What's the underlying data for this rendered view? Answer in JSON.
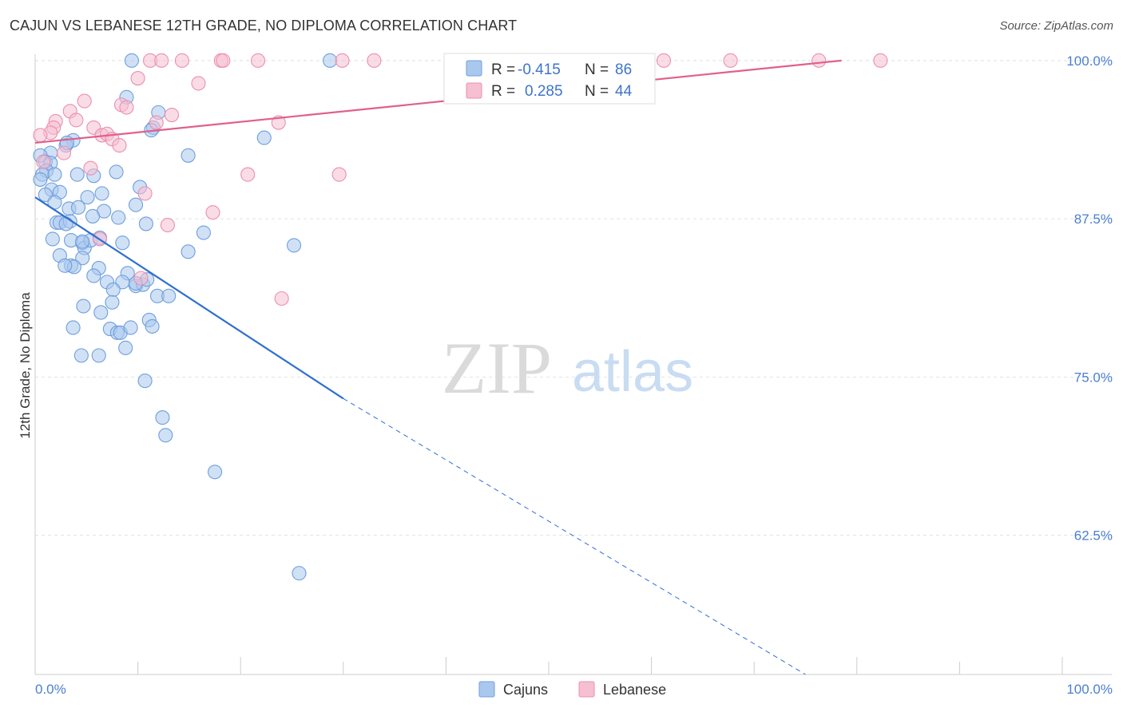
{
  "title": "CAJUN VS LEBANESE 12TH GRADE, NO DIPLOMA CORRELATION CHART",
  "source": "Source: ZipAtlas.com",
  "watermark": {
    "zip": "ZIP",
    "atlas": "atlas"
  },
  "colors": {
    "cajuns_fill": "#aac8ee",
    "cajuns_stroke": "#6f9fdc",
    "cajuns_line": "#2f6fcf",
    "lebanese_fill": "#f6bfd2",
    "lebanese_stroke": "#ea8fb0",
    "lebanese_line": "#e0608c",
    "tick_label": "#4a7fd0",
    "grid": "#e3e3e3"
  },
  "legend": {
    "rows": [
      {
        "r_label": "R =",
        "r_value": "-0.415",
        "n_label": "N =",
        "n_value": "86"
      },
      {
        "r_label": "R =",
        "r_value": "0.285",
        "n_label": "N =",
        "n_value": "44"
      }
    ]
  },
  "chart_data": {
    "type": "scatter",
    "title": "CAJUN VS LEBANESE 12TH GRADE, NO DIPLOMA CORRELATION CHART",
    "xlabel": "",
    "ylabel": "12th Grade, No Diploma",
    "xlim": [
      0,
      100
    ],
    "ylim": [
      51.5,
      101
    ],
    "x_tick_labels": [
      "0.0%",
      "100.0%"
    ],
    "y_ticks": [
      62.5,
      75.0,
      87.5,
      100.0
    ],
    "y_tick_labels": [
      "62.5%",
      "75.0%",
      "87.5%",
      "100.0%"
    ],
    "grid": "horizontal dashed",
    "legend_position": "top-center",
    "series": [
      {
        "name": "Cajuns",
        "color": "#aac8ee",
        "r": -0.415,
        "n": 86,
        "trend": {
          "x": [
            0,
            30
          ],
          "y": [
            89.2,
            73.3
          ],
          "dashed_extension_to": [
            75,
            51.5
          ]
        },
        "points": [
          [
            9.4,
            100.0
          ],
          [
            8.9,
            97.1
          ],
          [
            12.0,
            95.9
          ],
          [
            11.5,
            94.7
          ],
          [
            3.7,
            93.7
          ],
          [
            3.0,
            93.3
          ],
          [
            1.5,
            92.7
          ],
          [
            0.5,
            92.5
          ],
          [
            1.0,
            92.0
          ],
          [
            1.5,
            91.9
          ],
          [
            1.1,
            91.3
          ],
          [
            0.7,
            91.0
          ],
          [
            1.9,
            91.0
          ],
          [
            4.1,
            91.0
          ],
          [
            5.7,
            90.9
          ],
          [
            7.9,
            91.2
          ],
          [
            1.6,
            89.8
          ],
          [
            1.0,
            89.4
          ],
          [
            2.4,
            89.6
          ],
          [
            6.5,
            89.5
          ],
          [
            10.2,
            90.0
          ],
          [
            5.1,
            89.2
          ],
          [
            1.9,
            88.8
          ],
          [
            3.3,
            88.3
          ],
          [
            4.2,
            88.4
          ],
          [
            6.7,
            88.1
          ],
          [
            5.6,
            87.7
          ],
          [
            8.1,
            87.6
          ],
          [
            9.8,
            88.6
          ],
          [
            2.1,
            87.2
          ],
          [
            2.4,
            87.2
          ],
          [
            3.4,
            87.3
          ],
          [
            3.0,
            87.1
          ],
          [
            10.8,
            87.1
          ],
          [
            1.7,
            85.9
          ],
          [
            3.5,
            85.8
          ],
          [
            4.6,
            85.6
          ],
          [
            4.8,
            85.2
          ],
          [
            5.4,
            85.8
          ],
          [
            8.5,
            85.6
          ],
          [
            16.4,
            86.4
          ],
          [
            25.2,
            85.4
          ],
          [
            14.9,
            84.9
          ],
          [
            2.4,
            84.6
          ],
          [
            4.6,
            84.4
          ],
          [
            3.5,
            83.8
          ],
          [
            3.8,
            83.7
          ],
          [
            6.2,
            83.6
          ],
          [
            5.7,
            83.0
          ],
          [
            9.0,
            83.2
          ],
          [
            7.0,
            82.5
          ],
          [
            8.5,
            82.5
          ],
          [
            9.8,
            82.2
          ],
          [
            10.5,
            82.3
          ],
          [
            10.9,
            82.7
          ],
          [
            7.6,
            81.9
          ],
          [
            11.9,
            81.4
          ],
          [
            13.0,
            81.4
          ],
          [
            7.5,
            80.9
          ],
          [
            4.7,
            80.6
          ],
          [
            6.4,
            80.1
          ],
          [
            11.1,
            79.5
          ],
          [
            11.4,
            79.0
          ],
          [
            3.7,
            78.9
          ],
          [
            7.3,
            78.8
          ],
          [
            8.0,
            78.5
          ],
          [
            8.3,
            78.5
          ],
          [
            9.3,
            78.9
          ],
          [
            8.8,
            77.3
          ],
          [
            4.5,
            76.7
          ],
          [
            6.2,
            76.7
          ],
          [
            10.7,
            74.7
          ],
          [
            12.4,
            71.8
          ],
          [
            12.7,
            70.4
          ],
          [
            17.5,
            67.5
          ],
          [
            25.7,
            59.5
          ],
          [
            14.9,
            92.5
          ],
          [
            22.3,
            93.9
          ],
          [
            28.7,
            100.0
          ],
          [
            11.3,
            94.5
          ],
          [
            3.1,
            93.5
          ],
          [
            0.5,
            90.6
          ],
          [
            2.9,
            83.8
          ],
          [
            4.6,
            85.7
          ],
          [
            6.3,
            86.0
          ],
          [
            9.8,
            82.4
          ]
        ]
      },
      {
        "name": "Lebanese",
        "color": "#f6bfd2",
        "r": 0.285,
        "n": 44,
        "trend": {
          "x": [
            0,
            78.5
          ],
          "y": [
            93.5,
            100.0
          ]
        },
        "points": [
          [
            11.2,
            100.0
          ],
          [
            12.3,
            100.0
          ],
          [
            14.3,
            100.0
          ],
          [
            18.1,
            100.0
          ],
          [
            18.3,
            100.0
          ],
          [
            21.7,
            100.0
          ],
          [
            29.9,
            100.0
          ],
          [
            33.0,
            100.0
          ],
          [
            48.7,
            100.0
          ],
          [
            54.6,
            100.0
          ],
          [
            61.2,
            100.0
          ],
          [
            67.7,
            100.0
          ],
          [
            76.3,
            100.0
          ],
          [
            82.3,
            100.0
          ],
          [
            10.0,
            98.6
          ],
          [
            15.9,
            98.2
          ],
          [
            4.8,
            96.8
          ],
          [
            8.4,
            96.5
          ],
          [
            3.4,
            96.0
          ],
          [
            8.9,
            96.3
          ],
          [
            13.3,
            95.7
          ],
          [
            2.0,
            95.2
          ],
          [
            4.0,
            95.3
          ],
          [
            11.8,
            95.1
          ],
          [
            23.7,
            95.1
          ],
          [
            1.8,
            94.7
          ],
          [
            5.7,
            94.7
          ],
          [
            1.5,
            94.3
          ],
          [
            0.5,
            94.1
          ],
          [
            6.5,
            94.1
          ],
          [
            7.0,
            94.2
          ],
          [
            7.5,
            93.8
          ],
          [
            8.2,
            93.3
          ],
          [
            2.8,
            92.7
          ],
          [
            0.8,
            92.0
          ],
          [
            5.4,
            91.5
          ],
          [
            20.7,
            91.0
          ],
          [
            29.6,
            91.0
          ],
          [
            10.7,
            89.5
          ],
          [
            17.3,
            88.0
          ],
          [
            12.9,
            87.0
          ],
          [
            6.3,
            85.9
          ],
          [
            10.3,
            82.8
          ],
          [
            24.0,
            81.2
          ]
        ]
      }
    ]
  },
  "bottom_legend": {
    "cajuns": "Cajuns",
    "lebanese": "Lebanese"
  }
}
